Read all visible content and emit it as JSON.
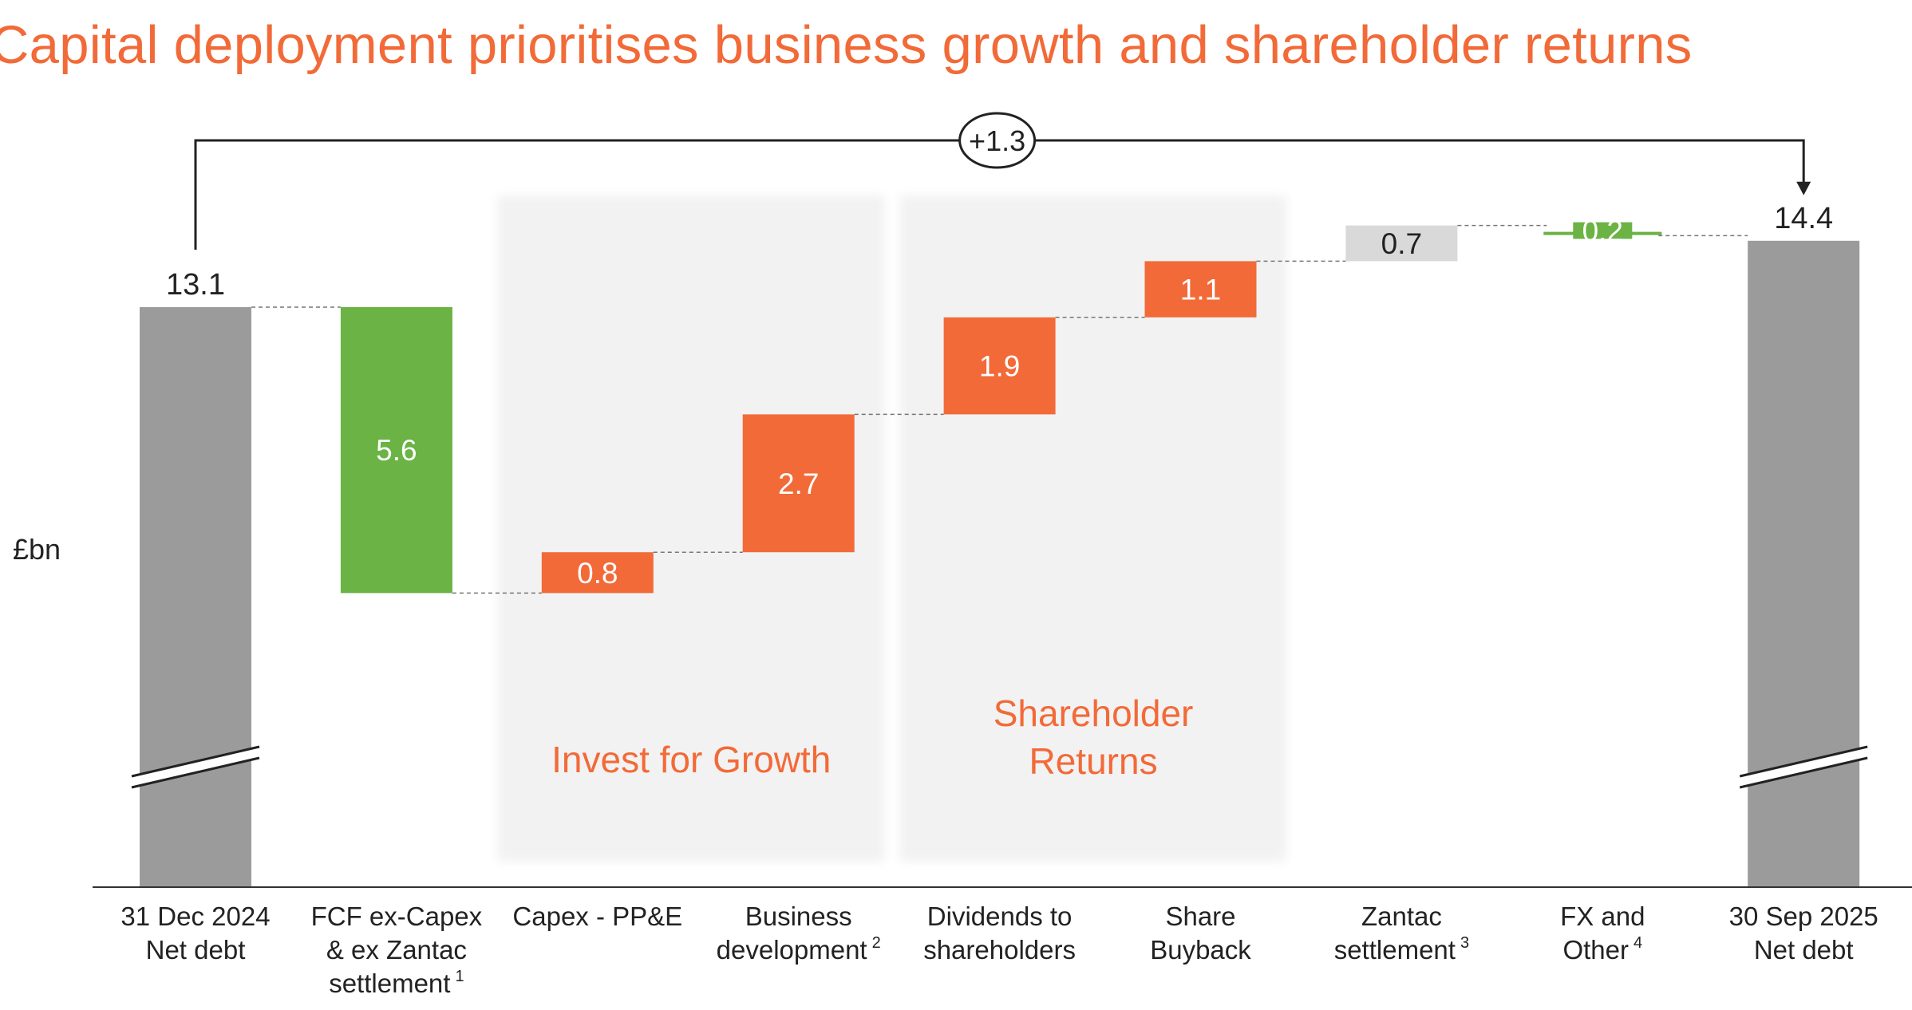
{
  "title": "Capital deployment prioritises business growth and shareholder returns",
  "colors": {
    "accent": "#f26a38",
    "green": "#6ab344",
    "grey": "#9b9b9b",
    "light_grey": "#d9d9d9",
    "panel": "#f2f2f2"
  },
  "chart_data": {
    "type": "waterfall",
    "title": "Capital deployment prioritises business growth and shareholder returns",
    "ylabel": "£bn",
    "ylim": [
      0,
      14.4
    ],
    "axis_break": true,
    "bridge_label": "+1.3",
    "groups": [
      {
        "label": "Invest for Growth",
        "categories": [
          "Capex - PP&E",
          "Business development"
        ]
      },
      {
        "label": "Shareholder Returns",
        "categories": [
          "Dividends to shareholders",
          "Share Buyback"
        ]
      }
    ],
    "bars": [
      {
        "label": "31 Dec 2024 Net debt",
        "lines": [
          "31 Dec 2024",
          "Net debt"
        ],
        "footnote": "",
        "value": 13.1,
        "display": "13.1",
        "kind": "total"
      },
      {
        "label": "FCF ex-Capex & ex Zantac settlement",
        "lines": [
          "FCF ex-Capex",
          "& ex Zantac",
          "settlement"
        ],
        "footnote": "1",
        "value": -5.6,
        "display": "5.6",
        "kind": "decrease"
      },
      {
        "label": "Capex - PP&E",
        "lines": [
          "Capex - PP&E"
        ],
        "footnote": "",
        "value": 0.8,
        "display": "0.8",
        "kind": "increase"
      },
      {
        "label": "Business development",
        "lines": [
          "Business",
          "development"
        ],
        "footnote": "2",
        "value": 2.7,
        "display": "2.7",
        "kind": "increase"
      },
      {
        "label": "Dividends to shareholders",
        "lines": [
          "Dividends to",
          "shareholders"
        ],
        "footnote": "",
        "value": 1.9,
        "display": "1.9",
        "kind": "increase"
      },
      {
        "label": "Share Buyback",
        "lines": [
          "Share",
          "Buyback"
        ],
        "footnote": "",
        "value": 1.1,
        "display": "1.1",
        "kind": "increase"
      },
      {
        "label": "Zantac settlement",
        "lines": [
          "Zantac",
          "settlement"
        ],
        "footnote": "3",
        "value": 0.7,
        "display": "0.7",
        "kind": "neutral"
      },
      {
        "label": "FX and Other",
        "lines": [
          "FX and",
          "Other"
        ],
        "footnote": "4",
        "value": -0.2,
        "display": "0.2",
        "kind": "decrease_small"
      },
      {
        "label": "30 Sep 2025 Net debt",
        "lines": [
          "30 Sep 2025",
          "Net debt"
        ],
        "footnote": "",
        "value": 14.4,
        "display": "14.4",
        "kind": "total"
      }
    ]
  }
}
